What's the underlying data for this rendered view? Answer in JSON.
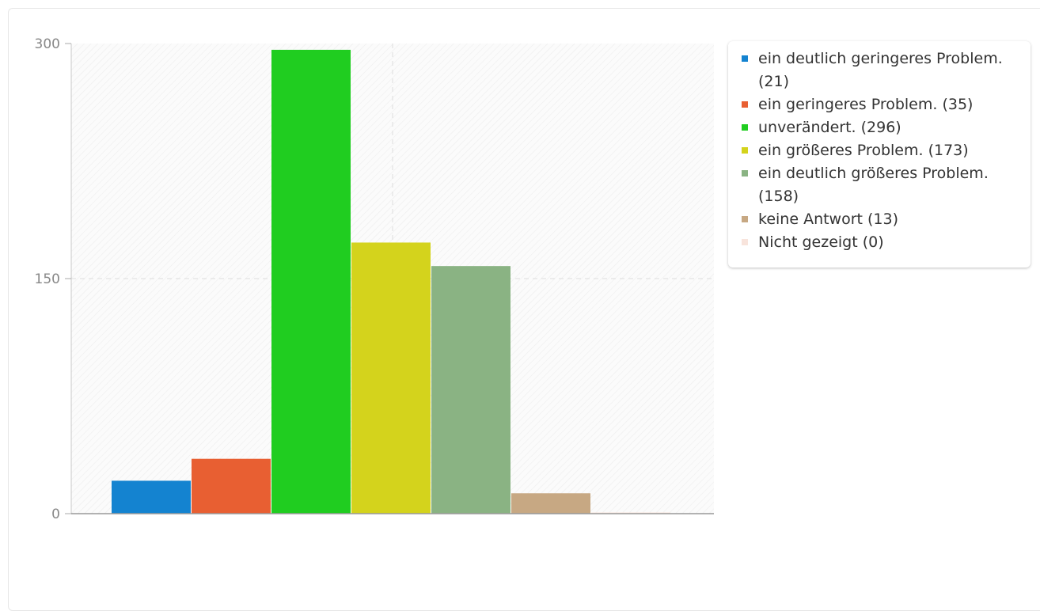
{
  "chart_data": {
    "type": "bar",
    "categories": [
      "ein deutlich geringeres Problem. (21)",
      "ein geringeres Problem. (35)",
      "unverändert. (296)",
      "ein größeres Problem. (173)",
      "ein deutlich größeres Problem. (158)",
      "keine Antwort (13)",
      "Nicht gezeigt (0)"
    ],
    "values": [
      21,
      35,
      296,
      173,
      158,
      13,
      0
    ],
    "colors": [
      "#1483d0",
      "#e85f32",
      "#20cd20",
      "#d4d31c",
      "#8ab383",
      "#c7a883",
      "#f8e4dc"
    ],
    "yticks": [
      "300",
      "150",
      "0"
    ],
    "ylim": [
      0,
      300
    ],
    "legend_position": "right",
    "grid": true,
    "title": "",
    "xlabel": "",
    "ylabel": ""
  }
}
